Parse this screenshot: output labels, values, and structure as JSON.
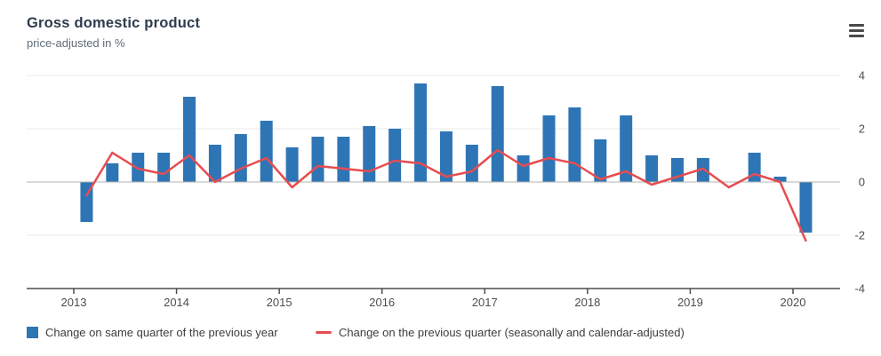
{
  "header": {
    "title": "Gross domestic product",
    "subtitle": "price-adjusted in %",
    "menu_icon": "hamburger-menu-icon"
  },
  "colors": {
    "bar": "#2e75b6",
    "line": "#e74c50",
    "grid_light": "#e9e9e9",
    "zero_line": "#b3b3b3",
    "axis": "#4d4d4d",
    "axis_text": "#4d4d4d"
  },
  "legend": {
    "items": [
      {
        "marker": "square",
        "color": "#2e75b6",
        "label": "Change on same quarter of the previous year"
      },
      {
        "marker": "line",
        "color": "#e74c50",
        "label": "Change on the previous quarter (seasonally and calendar-adjusted)"
      }
    ]
  },
  "chart_data": {
    "type": "bar+line",
    "title": "Gross domestic product",
    "subtitle": "price-adjusted in %",
    "unit": "%",
    "categories": [
      "2013 Q1",
      "2013 Q2",
      "2013 Q3",
      "2013 Q4",
      "2014 Q1",
      "2014 Q2",
      "2014 Q3",
      "2014 Q4",
      "2015 Q1",
      "2015 Q2",
      "2015 Q3",
      "2015 Q4",
      "2016 Q1",
      "2016 Q2",
      "2016 Q3",
      "2016 Q4",
      "2017 Q1",
      "2017 Q2",
      "2017 Q3",
      "2017 Q4",
      "2018 Q1",
      "2018 Q2",
      "2018 Q3",
      "2018 Q4",
      "2019 Q1",
      "2019 Q2",
      "2019 Q3",
      "2019 Q4",
      "2020 Q1"
    ],
    "x_tick_labels": [
      "2013",
      "2014",
      "2015",
      "2016",
      "2017",
      "2018",
      "2019",
      "2020"
    ],
    "ytick_labels": [
      "4",
      "2",
      "0",
      "-2",
      "-4"
    ],
    "yticks": [
      4,
      2,
      0,
      -2,
      -4
    ],
    "ylim": [
      -4,
      4
    ],
    "grid": "horizontal-light",
    "legend_position": "bottom-left",
    "series": [
      {
        "name": "Change on same quarter of the previous year",
        "type": "bar",
        "color": "#2e75b6",
        "values": [
          -1.5,
          0.7,
          1.1,
          1.1,
          3.2,
          1.4,
          1.8,
          2.3,
          1.3,
          1.7,
          1.7,
          2.1,
          2.0,
          3.7,
          1.9,
          1.4,
          3.6,
          1.0,
          2.5,
          2.8,
          1.6,
          2.5,
          1.0,
          0.9,
          0.9,
          0.0,
          1.1,
          0.2,
          -1.9
        ]
      },
      {
        "name": "Change on the previous quarter (seasonally and calendar-adjusted)",
        "type": "line",
        "color": "#e74c50",
        "values": [
          -0.5,
          1.1,
          0.5,
          0.3,
          1.0,
          0.0,
          0.5,
          0.9,
          -0.2,
          0.6,
          0.5,
          0.4,
          0.8,
          0.7,
          0.2,
          0.4,
          1.2,
          0.6,
          0.9,
          0.7,
          0.1,
          0.4,
          -0.1,
          0.2,
          0.5,
          -0.2,
          0.3,
          0.0,
          -2.2
        ]
      }
    ]
  }
}
